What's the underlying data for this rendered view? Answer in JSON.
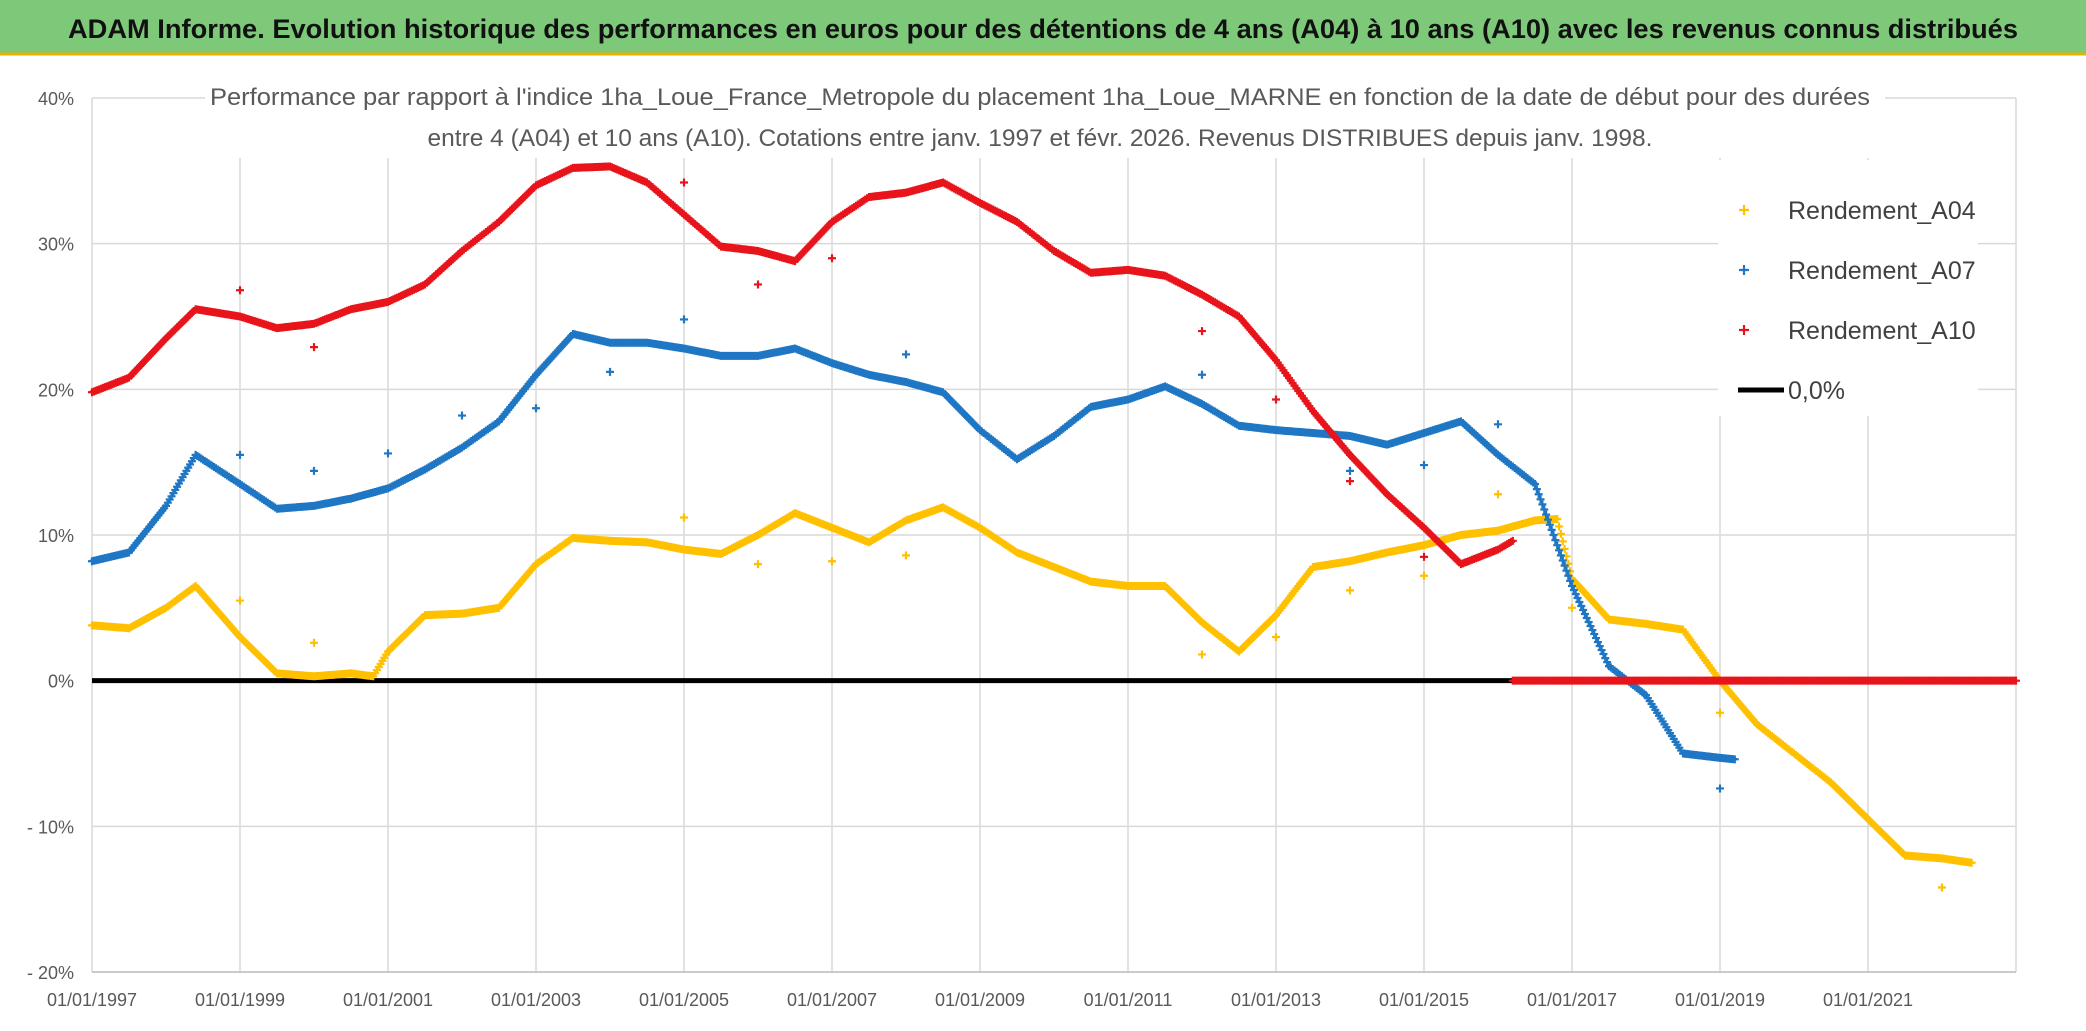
{
  "banner": {
    "title": "ADAM Informe. Evolution historique des performances en euros pour des détentions de 4 ans (A04) à 10 ans (A10) avec les revenus connus distribués",
    "color": "#7ec87a"
  },
  "chart_data": {
    "type": "scatter",
    "title_line1": "Performance par rapport à l'indice 1ha_Loue_France_Metropole  du placement 1ha_Loue_MARNE en fonction de la date de début pour des durées",
    "title_line2": "entre 4 (A04) et 10 ans (A10). Cotations entre janv. 1997 et févr. 2026. Revenus DISTRIBUES depuis janv. 1998.",
    "xlabel": "",
    "ylabel": "",
    "xlim": [
      1997.0,
      2023.0
    ],
    "ylim": [
      -20,
      40
    ],
    "y_ticks": [
      40,
      30,
      20,
      10,
      0,
      -10,
      -20
    ],
    "y_tick_labels": [
      "40%",
      "30%",
      "20%",
      "10%",
      "0%",
      "- 10%",
      "- 20%"
    ],
    "x_ticks": [
      1997,
      1999,
      2001,
      2003,
      2005,
      2007,
      2009,
      2011,
      2013,
      2015,
      2017,
      2019,
      2021
    ],
    "x_tick_labels": [
      "01/01/1997",
      "01/01/1999",
      "01/01/2001",
      "01/01/2003",
      "01/01/2005",
      "01/01/2007",
      "01/01/2009",
      "01/01/2011",
      "01/01/2013",
      "01/01/2015",
      "01/01/2017",
      "01/01/2019",
      "01/01/2021"
    ],
    "grid": true,
    "legend_position": "top-right",
    "legend": [
      "Rendement_A04",
      "Rendement_A07",
      "Rendement_A10",
      "0,0%"
    ],
    "series": [
      {
        "name": "Rendement_A04",
        "color": "#ffc000",
        "points": [
          [
            1997.0,
            3.8
          ],
          [
            1997.5,
            3.6
          ],
          [
            1998.0,
            5.0
          ],
          [
            1998.4,
            6.5
          ],
          [
            1999.0,
            3.0
          ],
          [
            1999.5,
            0.5
          ],
          [
            2000.0,
            0.3
          ],
          [
            2000.5,
            0.5
          ],
          [
            2000.8,
            0.3
          ],
          [
            2001.0,
            2.0
          ],
          [
            2001.5,
            4.5
          ],
          [
            2002.0,
            4.6
          ],
          [
            2002.5,
            5.0
          ],
          [
            2003.0,
            8.0
          ],
          [
            2003.5,
            9.8
          ],
          [
            2004.0,
            9.6
          ],
          [
            2004.5,
            9.5
          ],
          [
            2005.0,
            9.0
          ],
          [
            2005.5,
            8.7
          ],
          [
            2006.0,
            10.0
          ],
          [
            2006.5,
            11.5
          ],
          [
            2007.0,
            10.5
          ],
          [
            2007.5,
            9.5
          ],
          [
            2008.0,
            11.0
          ],
          [
            2008.5,
            11.9
          ],
          [
            2009.0,
            10.5
          ],
          [
            2009.5,
            8.8
          ],
          [
            2010.0,
            7.8
          ],
          [
            2010.5,
            6.8
          ],
          [
            2011.0,
            6.5
          ],
          [
            2011.5,
            6.5
          ],
          [
            2012.0,
            4.0
          ],
          [
            2012.5,
            2.0
          ],
          [
            2013.0,
            4.5
          ],
          [
            2013.5,
            7.8
          ],
          [
            2014.0,
            8.2
          ],
          [
            2014.5,
            8.8
          ],
          [
            2015.0,
            9.3
          ],
          [
            2015.5,
            10.0
          ],
          [
            2016.0,
            10.3
          ],
          [
            2016.5,
            11.0
          ],
          [
            2016.8,
            11.1
          ],
          [
            2017.0,
            7.0
          ],
          [
            2017.5,
            4.2
          ],
          [
            2018.0,
            3.9
          ],
          [
            2018.5,
            3.5
          ],
          [
            2019.0,
            0.0
          ],
          [
            2019.5,
            -3.0
          ],
          [
            2020.0,
            -5.0
          ],
          [
            2020.5,
            -7.0
          ],
          [
            2021.0,
            -9.5
          ],
          [
            2021.5,
            -12.0
          ],
          [
            2022.0,
            -12.2
          ],
          [
            2022.4,
            -12.5
          ]
        ],
        "outliers": [
          [
            1999.0,
            5.5
          ],
          [
            2000.0,
            2.6
          ],
          [
            2005.0,
            11.2
          ],
          [
            2006.0,
            8.0
          ],
          [
            2007.0,
            8.2
          ],
          [
            2008.0,
            8.6
          ],
          [
            2012.0,
            1.8
          ],
          [
            2013.0,
            3.0
          ],
          [
            2014.0,
            6.2
          ],
          [
            2015.0,
            7.2
          ],
          [
            2016.0,
            12.8
          ],
          [
            2017.0,
            5.0
          ],
          [
            2019.0,
            -2.2
          ],
          [
            2022.0,
            -14.2
          ]
        ]
      },
      {
        "name": "Rendement_A07",
        "color": "#1f77c4",
        "points": [
          [
            1997.0,
            8.2
          ],
          [
            1997.5,
            8.8
          ],
          [
            1998.0,
            12.0
          ],
          [
            1998.4,
            15.5
          ],
          [
            1999.0,
            13.5
          ],
          [
            1999.5,
            11.8
          ],
          [
            2000.0,
            12.0
          ],
          [
            2000.5,
            12.5
          ],
          [
            2001.0,
            13.2
          ],
          [
            2001.5,
            14.5
          ],
          [
            2002.0,
            16.0
          ],
          [
            2002.5,
            17.8
          ],
          [
            2003.0,
            21.0
          ],
          [
            2003.5,
            23.8
          ],
          [
            2004.0,
            23.2
          ],
          [
            2004.5,
            23.2
          ],
          [
            2005.0,
            22.8
          ],
          [
            2005.5,
            22.3
          ],
          [
            2006.0,
            22.3
          ],
          [
            2006.5,
            22.8
          ],
          [
            2007.0,
            21.8
          ],
          [
            2007.5,
            21.0
          ],
          [
            2008.0,
            20.5
          ],
          [
            2008.5,
            19.8
          ],
          [
            2009.0,
            17.2
          ],
          [
            2009.5,
            15.2
          ],
          [
            2010.0,
            16.8
          ],
          [
            2010.5,
            18.8
          ],
          [
            2011.0,
            19.3
          ],
          [
            2011.5,
            20.2
          ],
          [
            2012.0,
            19.0
          ],
          [
            2012.5,
            17.5
          ],
          [
            2013.0,
            17.2
          ],
          [
            2013.5,
            17.0
          ],
          [
            2014.0,
            16.8
          ],
          [
            2014.5,
            16.2
          ],
          [
            2015.0,
            17.0
          ],
          [
            2015.5,
            17.8
          ],
          [
            2016.0,
            15.5
          ],
          [
            2016.5,
            13.5
          ],
          [
            2017.0,
            6.5
          ],
          [
            2017.5,
            1.0
          ],
          [
            2018.0,
            -1.0
          ],
          [
            2018.5,
            -5.0
          ],
          [
            2019.0,
            -5.3
          ],
          [
            2019.2,
            -5.4
          ]
        ],
        "outliers": [
          [
            1999.0,
            15.5
          ],
          [
            2000.0,
            14.4
          ],
          [
            2001.0,
            15.6
          ],
          [
            2002.0,
            18.2
          ],
          [
            2003.0,
            18.7
          ],
          [
            2004.0,
            21.2
          ],
          [
            2005.0,
            24.8
          ],
          [
            2008.0,
            22.4
          ],
          [
            2012.0,
            21.0
          ],
          [
            2014.0,
            14.4
          ],
          [
            2015.0,
            14.8
          ],
          [
            2016.0,
            17.6
          ],
          [
            2019.0,
            -7.4
          ]
        ]
      },
      {
        "name": "Rendement_A10",
        "color": "#e8141b",
        "points": [
          [
            1997.0,
            19.8
          ],
          [
            1997.5,
            20.8
          ],
          [
            1998.0,
            23.5
          ],
          [
            1998.4,
            25.5
          ],
          [
            1999.0,
            25.0
          ],
          [
            1999.5,
            24.2
          ],
          [
            2000.0,
            24.5
          ],
          [
            2000.5,
            25.5
          ],
          [
            2001.0,
            26.0
          ],
          [
            2001.5,
            27.2
          ],
          [
            2002.0,
            29.5
          ],
          [
            2002.5,
            31.5
          ],
          [
            2003.0,
            34.0
          ],
          [
            2003.5,
            35.2
          ],
          [
            2004.0,
            35.3
          ],
          [
            2004.5,
            34.2
          ],
          [
            2005.0,
            32.0
          ],
          [
            2005.5,
            29.8
          ],
          [
            2006.0,
            29.5
          ],
          [
            2006.5,
            28.8
          ],
          [
            2007.0,
            31.5
          ],
          [
            2007.5,
            33.2
          ],
          [
            2008.0,
            33.5
          ],
          [
            2008.5,
            34.2
          ],
          [
            2009.0,
            32.8
          ],
          [
            2009.5,
            31.5
          ],
          [
            2010.0,
            29.5
          ],
          [
            2010.5,
            28.0
          ],
          [
            2011.0,
            28.2
          ],
          [
            2011.5,
            27.8
          ],
          [
            2012.0,
            26.5
          ],
          [
            2012.5,
            25.0
          ],
          [
            2013.0,
            22.0
          ],
          [
            2013.5,
            18.5
          ],
          [
            2014.0,
            15.5
          ],
          [
            2014.5,
            12.8
          ],
          [
            2015.0,
            10.5
          ],
          [
            2015.5,
            8.0
          ],
          [
            2016.0,
            9.0
          ],
          [
            2016.2,
            9.6
          ]
        ],
        "outliers": [
          [
            1999.0,
            26.8
          ],
          [
            2000.0,
            22.9
          ],
          [
            2005.0,
            34.2
          ],
          [
            2006.0,
            27.2
          ],
          [
            2007.0,
            29.0
          ],
          [
            2012.0,
            24.0
          ],
          [
            2013.0,
            19.3
          ],
          [
            2014.0,
            13.7
          ],
          [
            2015.0,
            8.5
          ]
        ],
        "zero_segment": [
          [
            2016.2,
            0.0
          ],
          [
            2023.0,
            0.0
          ]
        ]
      },
      {
        "name": "0,0%",
        "color": "#000000",
        "points": [
          [
            1997.0,
            0.0
          ],
          [
            2016.2,
            0.0
          ]
        ]
      }
    ]
  }
}
